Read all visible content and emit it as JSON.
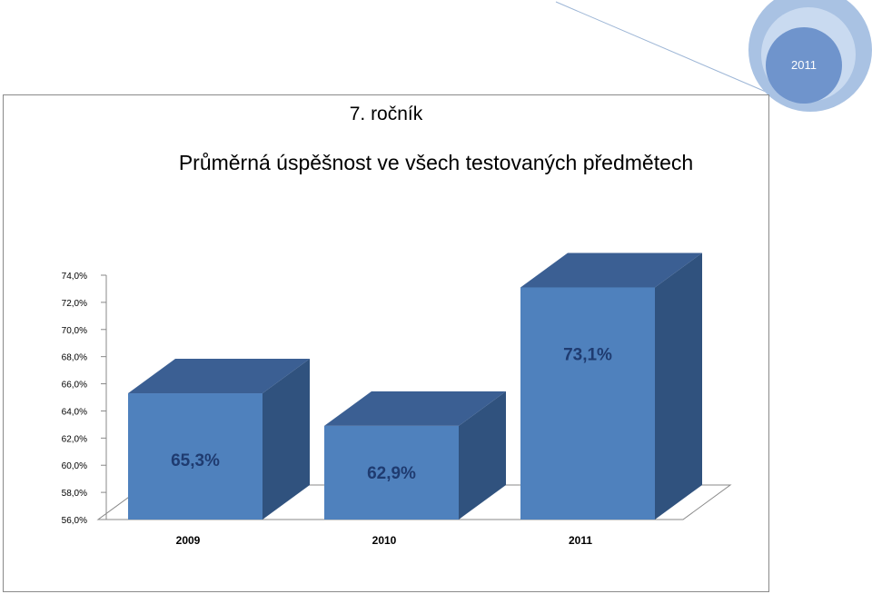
{
  "slide": {
    "title": "7. ročník",
    "year_badge": "2011"
  },
  "chart_data": {
    "type": "bar",
    "title": "Průměrná úspěšnost ve všech testovaných předmětech",
    "categories": [
      "2009",
      "2010",
      "2011"
    ],
    "values": [
      65.3,
      62.9,
      73.1
    ],
    "data_labels": [
      "65,3%",
      "62,9%",
      "73,1%"
    ],
    "ylim": [
      56,
      74
    ],
    "yticks": [
      "56,0%",
      "58,0%",
      "60,0%",
      "62,0%",
      "64,0%",
      "66,0%",
      "68,0%",
      "70,0%",
      "72,0%",
      "74,0%"
    ],
    "style": "3d",
    "colors": {
      "front": "#4f81bd",
      "top": "#3b5f93",
      "side": "#30527e"
    }
  }
}
